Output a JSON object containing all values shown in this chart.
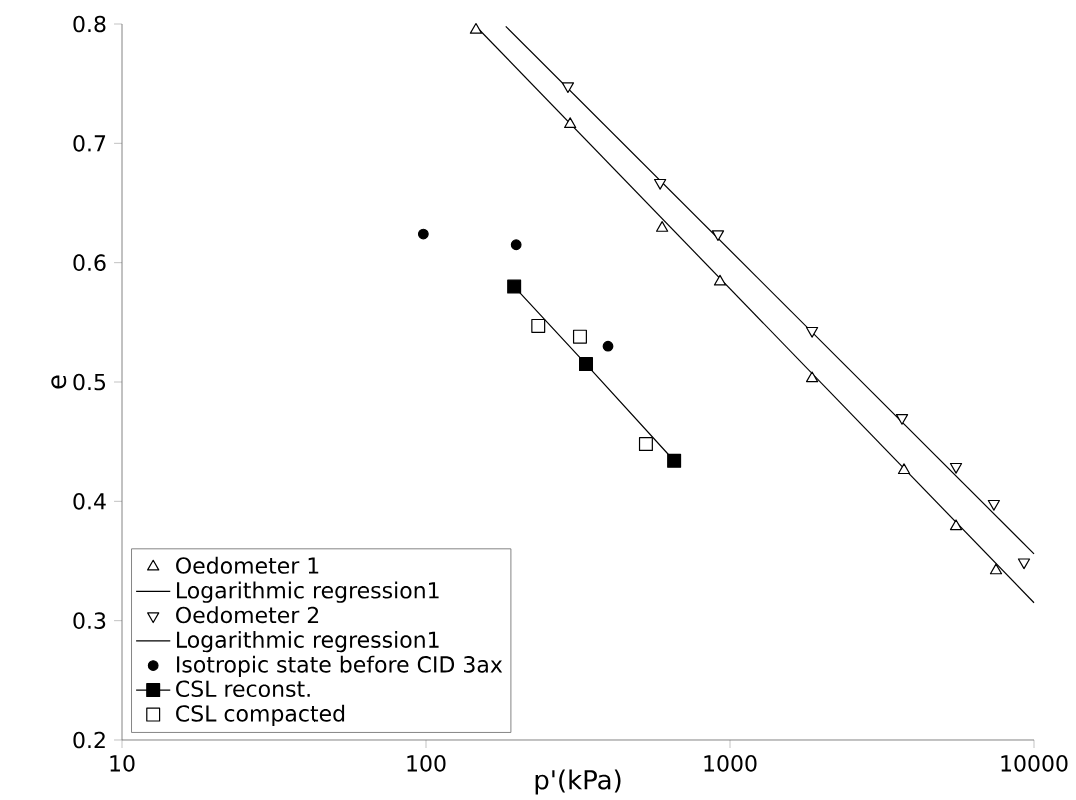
{
  "chart_data": {
    "type": "scatter",
    "xlabel": "p'(kPa)",
    "ylabel": "e",
    "log": "x",
    "xlim": [
      10,
      10000
    ],
    "xticks": [
      10,
      100,
      1000,
      10000
    ],
    "ylim": [
      0.2,
      0.8
    ],
    "yticks": [
      0.2,
      0.3,
      0.4,
      0.5,
      0.6,
      0.7,
      0.8
    ],
    "grid": false,
    "legend": "bottom left",
    "series": [
      {
        "name": "Oedometer 1",
        "marker": "triangle-open",
        "color": "#000000",
        "x": [
          146,
          298,
          598,
          927,
          1862,
          3736,
          5540,
          7500
        ],
        "values": [
          0.795,
          0.716,
          0.629,
          0.584,
          0.503,
          0.426,
          0.379,
          0.342
        ]
      },
      {
        "name": "Logarithmic regression1",
        "type": "line",
        "marker": "none",
        "color": "#000000",
        "x": [
          150,
          10000
        ],
        "values": [
          0.795,
          0.315
        ]
      },
      {
        "name": "Oedometer 2",
        "marker": "triangle-down-open",
        "color": "#000000",
        "x": [
          293,
          589,
          913,
          1862,
          3680,
          5540,
          7380,
          9270
        ],
        "values": [
          0.748,
          0.667,
          0.624,
          0.543,
          0.47,
          0.429,
          0.398,
          0.349
        ]
      },
      {
        "name": "Logarithmic regression1",
        "type": "line",
        "marker": "none",
        "color": "#000000",
        "x": [
          183,
          10000
        ],
        "values": [
          0.798,
          0.356
        ]
      },
      {
        "name": "Isotropic state before CID 3ax",
        "marker": "circle",
        "color": "#000000",
        "x": [
          98,
          198,
          397
        ],
        "values": [
          0.624,
          0.615,
          0.53
        ]
      },
      {
        "name": "CSL reconst.",
        "type": "line",
        "marker": "square",
        "color": "#000000",
        "x": [
          195,
          336,
          655
        ],
        "values": [
          0.58,
          0.515,
          0.434
        ]
      },
      {
        "name": "CSL compacted",
        "marker": "square-open",
        "color": "#000000",
        "x": [
          234,
          321,
          529
        ],
        "values": [
          0.547,
          0.538,
          0.448
        ]
      }
    ]
  }
}
